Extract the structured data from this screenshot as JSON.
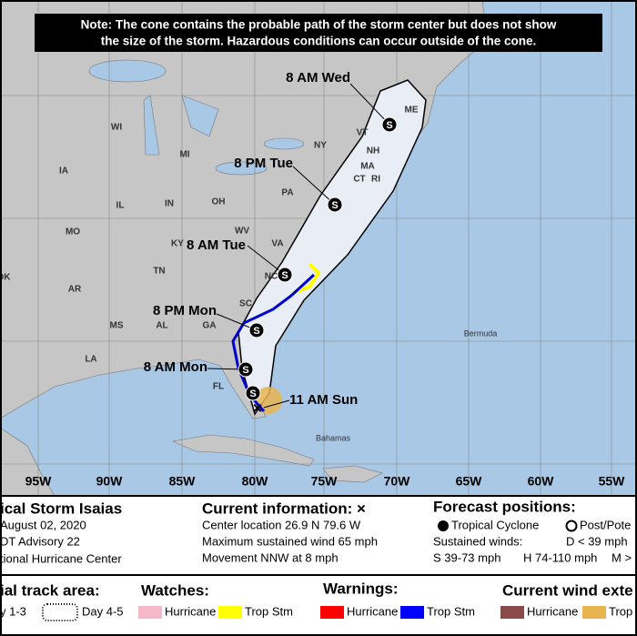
{
  "note": [
    "Note: The cone contains the probable path of the storm center but does not show",
    "the size of the storm. Hazardous conditions can occur outside of the cone."
  ],
  "forecast_labels": [
    "8 AM Wed",
    "8 PM Tue",
    "8 AM Tue",
    "8 PM Mon",
    "8 AM Mon",
    "11 AM Sun"
  ],
  "point_symbol": "S",
  "state_labels": [
    "WI",
    "MI",
    "IA",
    "IL",
    "IN",
    "OH",
    "PA",
    "NY",
    "MO",
    "KY",
    "WV",
    "VA",
    "TN",
    "NC",
    "OK",
    "AR",
    "SC",
    "MS",
    "AL",
    "GA",
    "LA",
    "FL",
    "VT",
    "NH",
    "MA",
    "CT",
    "RI",
    "ME"
  ],
  "places": [
    "Bermuda",
    "Bahamas"
  ],
  "longitudes": [
    "95W",
    "90W",
    "85W",
    "80W",
    "75W",
    "70W",
    "65W",
    "60W",
    "55W"
  ],
  "storm": {
    "name": "ical Storm Isaias",
    "lines": [
      "August 02, 2020",
      "DT Advisory 22",
      "tional Hurricane Center"
    ]
  },
  "current_information": {
    "title": "Current information: ×",
    "lines": [
      "Center location 26.9 N 79.6 W",
      "Maximum sustained wind 65 mph",
      "Movement NNW at 8 mph"
    ]
  },
  "forecast_positions": {
    "title": "Forecast positions:",
    "legend": [
      "Tropical Cyclone",
      "Post/Pote"
    ],
    "winds": [
      "Sustained winds:",
      "D < 39 mph",
      "S 39-73 mph",
      "H 74-110 mph",
      "M >"
    ]
  },
  "legend": {
    "track": {
      "title": "ial track area:",
      "items": [
        "y 1-3",
        "Day 4-5"
      ]
    },
    "watches": {
      "title": "Watches:",
      "items": [
        "Hurricane",
        "Trop Stm"
      ]
    },
    "warnings": {
      "title": "Warnings:",
      "items": [
        "Hurricane",
        "Trop Stm"
      ]
    },
    "wind": {
      "title": "Current wind exte",
      "items": [
        "Hurricane",
        "Trop S"
      ]
    }
  }
}
